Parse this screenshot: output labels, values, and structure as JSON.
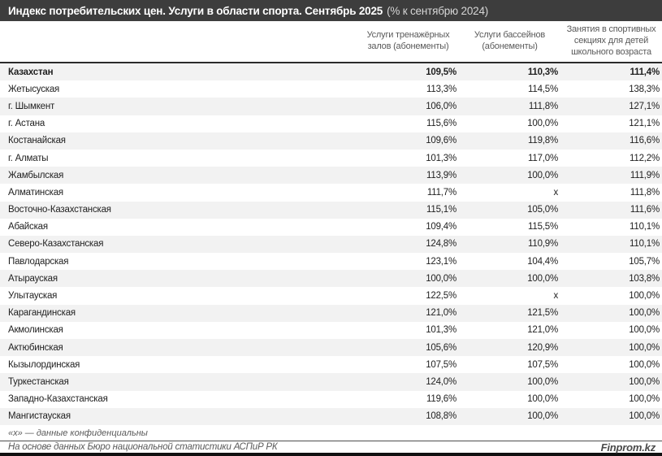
{
  "title": {
    "main": "Индекс потребительских цен. Услуги в области спорта. Сентябрь 2025",
    "suffix": "(% к сентябрю 2024)"
  },
  "table": {
    "region_column_header": "",
    "columns": [
      "Услуги тренажёрных залов (абонементы)",
      "Услуги бассейнов (абонементы)",
      "Занятия в спортивных секциях для детей школьного возраста"
    ],
    "rows": [
      {
        "region": "Казахстан",
        "values": [
          "109,5%",
          "110,3%",
          "111,4%"
        ],
        "bold": true
      },
      {
        "region": "Жетысуская",
        "values": [
          "113,3%",
          "114,5%",
          "138,3%"
        ],
        "bold": false
      },
      {
        "region": "г. Шымкент",
        "values": [
          "106,0%",
          "111,8%",
          "127,1%"
        ],
        "bold": false
      },
      {
        "region": "г. Астана",
        "values": [
          "115,6%",
          "100,0%",
          "121,1%"
        ],
        "bold": false
      },
      {
        "region": "Костанайская",
        "values": [
          "109,6%",
          "119,8%",
          "116,6%"
        ],
        "bold": false
      },
      {
        "region": "г. Алматы",
        "values": [
          "101,3%",
          "117,0%",
          "112,2%"
        ],
        "bold": false
      },
      {
        "region": "Жамбылская",
        "values": [
          "113,9%",
          "100,0%",
          "111,9%"
        ],
        "bold": false
      },
      {
        "region": "Алматинская",
        "values": [
          "111,7%",
          "х",
          "111,8%"
        ],
        "bold": false
      },
      {
        "region": "Восточно-Казахстанская",
        "values": [
          "115,1%",
          "105,0%",
          "111,6%"
        ],
        "bold": false
      },
      {
        "region": "Абайская",
        "values": [
          "109,4%",
          "115,5%",
          "110,1%"
        ],
        "bold": false
      },
      {
        "region": "Северо-Казахстанская",
        "values": [
          "124,8%",
          "110,9%",
          "110,1%"
        ],
        "bold": false
      },
      {
        "region": "Павлодарская",
        "values": [
          "123,1%",
          "104,4%",
          "105,7%"
        ],
        "bold": false
      },
      {
        "region": "Атырауская",
        "values": [
          "100,0%",
          "100,0%",
          "103,8%"
        ],
        "bold": false
      },
      {
        "region": "Улытауская",
        "values": [
          "122,5%",
          "х",
          "100,0%"
        ],
        "bold": false
      },
      {
        "region": "Карагандинская",
        "values": [
          "121,0%",
          "121,5%",
          "100,0%"
        ],
        "bold": false
      },
      {
        "region": "Акмолинская",
        "values": [
          "101,3%",
          "121,0%",
          "100,0%"
        ],
        "bold": false
      },
      {
        "region": "Актюбинская",
        "values": [
          "105,6%",
          "120,9%",
          "100,0%"
        ],
        "bold": false
      },
      {
        "region": "Кызылординская",
        "values": [
          "107,5%",
          "107,5%",
          "100,0%"
        ],
        "bold": false
      },
      {
        "region": "Туркестанская",
        "values": [
          "124,0%",
          "100,0%",
          "100,0%"
        ],
        "bold": false
      },
      {
        "region": "Западно-Казахстанская",
        "values": [
          "119,6%",
          "100,0%",
          "100,0%"
        ],
        "bold": false
      },
      {
        "region": "Мангистауская",
        "values": [
          "108,8%",
          "100,0%",
          "100,0%"
        ],
        "bold": false
      }
    ]
  },
  "footnote": "«х» — данные конфиденциальны",
  "source": "На основе данных Бюро национальной статистики АСПиР РК",
  "brand": "Finprom.kz",
  "colors": {
    "title_bar": "#3d3d3d",
    "title_text": "#ffffff",
    "title_suffix_text": "#d6d6d6",
    "alt_row": "#f2f2f2",
    "header_border": "#2b2b2b",
    "body_text": "#1f1f1f",
    "muted_text": "#595959",
    "bottom_bar": "#111111"
  },
  "chart_data": {
    "type": "table",
    "title": "Индекс потребительских цен. Услуги в области спорта. Сентябрь 2025 (% к сентябрю 2024)",
    "columns": [
      "Услуги тренажёрных залов (абонементы)",
      "Услуги бассейнов (абонементы)",
      "Занятия в спортивных секциях для детей школьного возраста"
    ],
    "unit": "% к сентябрю 2024",
    "confidential_marker": "х",
    "rows": [
      {
        "region": "Казахстан",
        "gym": 109.5,
        "pool": 110.3,
        "kids_sections": 111.4
      },
      {
        "region": "Жетысуская",
        "gym": 113.3,
        "pool": 114.5,
        "kids_sections": 138.3
      },
      {
        "region": "г. Шымкент",
        "gym": 106.0,
        "pool": 111.8,
        "kids_sections": 127.1
      },
      {
        "region": "г. Астана",
        "gym": 115.6,
        "pool": 100.0,
        "kids_sections": 121.1
      },
      {
        "region": "Костанайская",
        "gym": 109.6,
        "pool": 119.8,
        "kids_sections": 116.6
      },
      {
        "region": "г. Алматы",
        "gym": 101.3,
        "pool": 117.0,
        "kids_sections": 112.2
      },
      {
        "region": "Жамбылская",
        "gym": 113.9,
        "pool": 100.0,
        "kids_sections": 111.9
      },
      {
        "region": "Алматинская",
        "gym": 111.7,
        "pool": null,
        "kids_sections": 111.8
      },
      {
        "region": "Восточно-Казахстанская",
        "gym": 115.1,
        "pool": 105.0,
        "kids_sections": 111.6
      },
      {
        "region": "Абайская",
        "gym": 109.4,
        "pool": 115.5,
        "kids_sections": 110.1
      },
      {
        "region": "Северо-Казахстанская",
        "gym": 124.8,
        "pool": 110.9,
        "kids_sections": 110.1
      },
      {
        "region": "Павлодарская",
        "gym": 123.1,
        "pool": 104.4,
        "kids_sections": 105.7
      },
      {
        "region": "Атырауская",
        "gym": 100.0,
        "pool": 100.0,
        "kids_sections": 103.8
      },
      {
        "region": "Улытауская",
        "gym": 122.5,
        "pool": null,
        "kids_sections": 100.0
      },
      {
        "region": "Карагандинская",
        "gym": 121.0,
        "pool": 121.5,
        "kids_sections": 100.0
      },
      {
        "region": "Акмолинская",
        "gym": 101.3,
        "pool": 121.0,
        "kids_sections": 100.0
      },
      {
        "region": "Актюбинская",
        "gym": 105.6,
        "pool": 120.9,
        "kids_sections": 100.0
      },
      {
        "region": "Кызылординская",
        "gym": 107.5,
        "pool": 107.5,
        "kids_sections": 100.0
      },
      {
        "region": "Туркестанская",
        "gym": 124.0,
        "pool": 100.0,
        "kids_sections": 100.0
      },
      {
        "region": "Западно-Казахстанская",
        "gym": 119.6,
        "pool": 100.0,
        "kids_sections": 100.0
      },
      {
        "region": "Мангистауская",
        "gym": 108.8,
        "pool": 100.0,
        "kids_sections": 100.0
      }
    ]
  }
}
